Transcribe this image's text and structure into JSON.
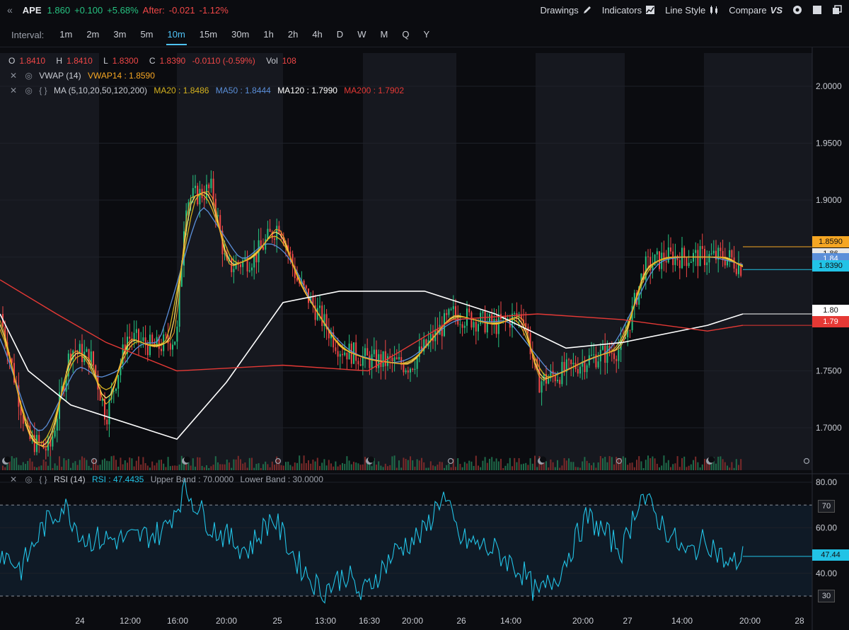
{
  "header": {
    "collapse_glyph": "«",
    "symbol": "APE",
    "last": "1.860",
    "change": "+0.100",
    "change_pct": "+5.68%",
    "after_label": "After:",
    "after_change": "-0.021",
    "after_pct": "-1.12%",
    "buttons": {
      "drawings": "Drawings",
      "indicators": "Indicators",
      "line_style": "Line Style",
      "compare": "Compare"
    }
  },
  "interval_bar": {
    "label": "Interval:",
    "intervals": [
      "1m",
      "2m",
      "3m",
      "5m",
      "10m",
      "15m",
      "30m",
      "1h",
      "2h",
      "4h",
      "D",
      "W",
      "M",
      "Q",
      "Y"
    ],
    "active": "10m"
  },
  "legend": {
    "ohlc": {
      "o_label": "O",
      "o": "1.8410",
      "h_label": "H",
      "h": "1.8410",
      "l_label": "L",
      "l": "1.8300",
      "c_label": "C",
      "c": "1.8390",
      "chg": "-0.0110 (-0.59%)",
      "vol_label": "Vol",
      "vol": "108"
    },
    "vwap": {
      "name": "VWAP (14)",
      "value": "VWAP14 : 1.8590"
    },
    "ma": {
      "name": "MA (5,10,20,50,120,200)",
      "ma20": "MA20 : 1.8486",
      "ma50": "MA50 : 1.8444",
      "ma120": "MA120 : 1.7990",
      "ma200": "MA200 : 1.7902"
    },
    "rsi": {
      "name": "RSI (14)",
      "value": "RSI : 47.4435",
      "upper": "Upper Band : 70.0000",
      "lower": "Lower Band : 30.0000"
    }
  },
  "price_axis": {
    "ticks": [
      "2.0000",
      "1.9500",
      "1.9000",
      "1.8500",
      "1.8000",
      "1.7500",
      "1.7000"
    ],
    "min": 1.665,
    "max": 2.02
  },
  "price_tags": [
    {
      "text": "1.8590",
      "color": "#f5a623"
    },
    {
      "text": "1.86",
      "color": "#e8e8e8"
    },
    {
      "text": "1.84",
      "color": "#5b8fd9"
    },
    {
      "text": "1.8390",
      "color": "#22c3e6"
    },
    {
      "text": "1.80",
      "color": "#ffffff"
    },
    {
      "text": "1.79",
      "color": "#e53935"
    }
  ],
  "rsi_axis": {
    "ticks": [
      "80.00",
      "60.00",
      "40.00"
    ],
    "min": 25,
    "max": 82
  },
  "rsi_tags": [
    {
      "text": "70",
      "color": "#c9ccd3"
    },
    {
      "text": "47.44",
      "color": "#22c3e6"
    },
    {
      "text": "30",
      "color": "#c9ccd3"
    }
  ],
  "time_axis": [
    "24",
    "12:00",
    "16:00",
    "20:00",
    "25",
    "13:00",
    "16:30",
    "20:00",
    "26",
    "14:00",
    "20:00",
    "27",
    "14:00",
    "20:00",
    "28"
  ],
  "icons": {
    "moon": "moon-icon",
    "sun": "sun-icon",
    "close": "close-icon",
    "eye": "eye-icon",
    "braces": "braces-icon",
    "pencil": "pencil-icon",
    "indicators": "chart-icon",
    "line_style": "candles-icon",
    "settings": "gear-icon",
    "window": "window-icon",
    "popout": "popout-icon"
  },
  "colors": {
    "up": "#26c281",
    "down": "#f04747",
    "accent": "#4fc3f7",
    "vwap": "#f5a623",
    "ma5": "#ffe066",
    "ma10": "#e8c53a",
    "ma20": "#d4b21f",
    "ma50": "#5b8fd9",
    "ma120": "#ffffff",
    "ma200": "#e53935",
    "rsi": "#22c3e6"
  },
  "chart_data": {
    "type": "candlestick",
    "description_series": [
      {
        "name": "MA120",
        "last": 1.799
      },
      {
        "name": "MA200",
        "last": 1.7902
      },
      {
        "name": "MA50",
        "last": 1.8444
      },
      {
        "name": "MA20",
        "last": 1.8486
      },
      {
        "name": "VWAP14",
        "last": 1.859
      },
      {
        "name": "RSI",
        "last": 47.4435
      }
    ],
    "ylim": [
      1.665,
      2.02
    ],
    "rsi_ylim": [
      25,
      82
    ],
    "rsi_bands": [
      30,
      70
    ]
  }
}
